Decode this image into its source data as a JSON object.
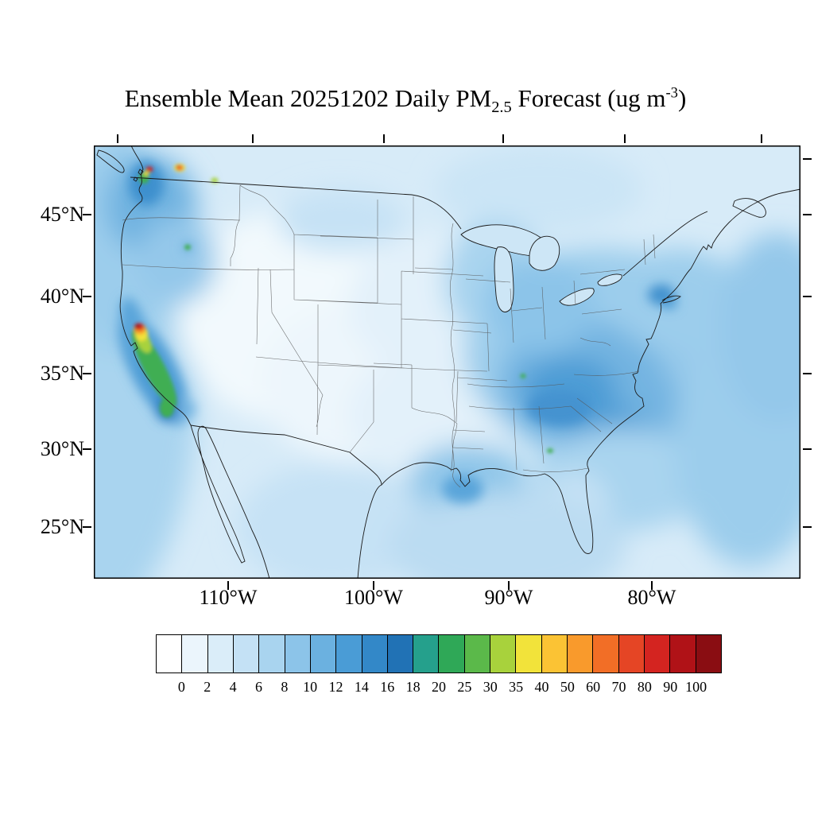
{
  "title": {
    "text_prefix": "Ensemble Mean 20251202 Daily PM",
    "subscript": "2.5",
    "text_mid": " Forecast (ug m",
    "superscript": "-3",
    "text_suffix": ")"
  },
  "map_frame": {
    "y_axis_labels": [
      "45°N",
      "40°N",
      "35°N",
      "30°N",
      "25°N"
    ],
    "x_axis_labels": [
      "110°W",
      "100°W",
      "90°W",
      "80°W"
    ]
  },
  "colorbar": {
    "tick_labels": [
      "0",
      "2",
      "4",
      "6",
      "8",
      "10",
      "12",
      "14",
      "16",
      "18",
      "20",
      "25",
      "30",
      "35",
      "40",
      "50",
      "60",
      "70",
      "80",
      "90",
      "100"
    ],
    "colors": [
      "#FFFFFF",
      "#EBF5FC",
      "#DAEDF9",
      "#C4E1F5",
      "#A9D4EF",
      "#8CC4E9",
      "#6BB1E0",
      "#4A9CD6",
      "#3388C8",
      "#2172B5",
      "#25A08C",
      "#2FA857",
      "#5BB94A",
      "#A8D23C",
      "#F2E33A",
      "#FBC334",
      "#F99A2C",
      "#F26E26",
      "#E54525",
      "#D42420",
      "#B01217",
      "#8A0D12"
    ]
  },
  "chart_data": {
    "type": "heatmap",
    "title": "Ensemble Mean 20251202 Daily PM2.5 Forecast (ug m-3)",
    "variable": "Daily mean PM2.5 concentration, ensemble mean forecast",
    "units": "ug m-3",
    "date_shown_in_title": "20251202",
    "region": "Contiguous United States and adjacent Canada / Mexico / oceans",
    "lat_ticks_deg_n": [
      45,
      40,
      35,
      30,
      25
    ],
    "lon_ticks_deg_w": [
      110,
      100,
      90,
      80
    ],
    "contour_levels": [
      0,
      2,
      4,
      6,
      8,
      10,
      12,
      14,
      16,
      18,
      20,
      25,
      30,
      35,
      40,
      50,
      60,
      70,
      80,
      90,
      100
    ],
    "legend_position": "bottom horizontal colorbar",
    "features": [
      {
        "area": "Central California (Bay Area / Central Valley)",
        "approx_value": "40-100+",
        "note": "strongest maximum: red/orange core surrounded by green plume along the valley"
      },
      {
        "area": "Puget Sound / Seattle and WA-BC border",
        "approx_value": "14-90",
        "note": "localized red, orange and green hot spots"
      },
      {
        "area": "Ohio Valley / Midwest / Mid-South",
        "approx_value": "8-14",
        "note": "broad darker-blue region over the eastern US"
      },
      {
        "area": "New York City metro",
        "approx_value": "10-14",
        "note": "small dark-blue maximum"
      },
      {
        "area": "Gulf Coast / Lower Mississippi valley",
        "approx_value": "6-10"
      },
      {
        "area": "Interior Mountain West / Great Basin",
        "approx_value": "0-2",
        "note": "lightest (near-white) values"
      },
      {
        "area": "Oceans and general background",
        "approx_value": "2-6"
      },
      {
        "area": "Scattered small green urban/point spots (Southeast, Idaho, N. Rockies)",
        "approx_value": "14-20"
      }
    ]
  },
  "colors": {
    "coast_line": "#1a1a1a",
    "state_line": "#555555",
    "frame": "#000000",
    "page_background": "#ffffff"
  }
}
